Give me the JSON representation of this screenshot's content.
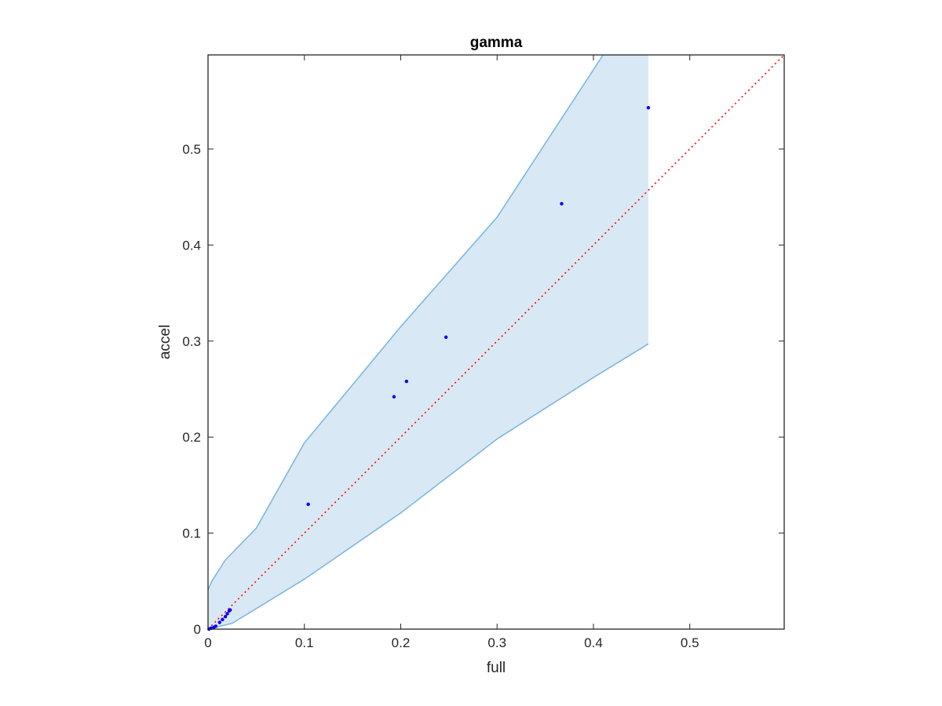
{
  "chart_data": {
    "type": "scatter",
    "title": "gamma",
    "xlabel": "full",
    "ylabel": "accel",
    "xlim": [
      0,
      0.598
    ],
    "ylim": [
      0,
      0.598
    ],
    "xticks": [
      "0",
      "0.1",
      "0.2",
      "0.3",
      "0.4",
      "0.5"
    ],
    "yticks": [
      "0",
      "0.1",
      "0.2",
      "0.3",
      "0.4",
      "0.5"
    ],
    "grid": false,
    "legend": "none",
    "colors": {
      "points": "#0000ff",
      "band_fill": "#d9e8f5",
      "band_edge": "#7fb7dd",
      "reference_line": "#ff0000",
      "axes": "#262626"
    },
    "reference_line": {
      "style": "dotted",
      "from": [
        0,
        0
      ],
      "to": [
        0.598,
        0.598
      ]
    },
    "band": {
      "upper": [
        [
          0,
          0.041
        ],
        [
          0.004,
          0.05
        ],
        [
          0.018,
          0.072
        ],
        [
          0.05,
          0.105
        ],
        [
          0.1,
          0.194
        ],
        [
          0.2,
          0.315
        ],
        [
          0.3,
          0.429
        ],
        [
          0.41,
          0.598
        ],
        [
          0.457,
          0.598
        ]
      ],
      "lower": [
        [
          0,
          0
        ],
        [
          0.025,
          0.006
        ],
        [
          0.1,
          0.052
        ],
        [
          0.2,
          0.121
        ],
        [
          0.3,
          0.198
        ],
        [
          0.4,
          0.262
        ],
        [
          0.457,
          0.297
        ]
      ]
    },
    "points": [
      [
        0.001,
        0.0
      ],
      [
        0.003,
        0.001
      ],
      [
        0.006,
        0.002
      ],
      [
        0.008,
        0.003
      ],
      [
        0.012,
        0.007
      ],
      [
        0.015,
        0.01
      ],
      [
        0.018,
        0.013
      ],
      [
        0.02,
        0.016
      ],
      [
        0.022,
        0.019
      ],
      [
        0.023,
        0.02
      ],
      [
        0.104,
        0.13
      ],
      [
        0.193,
        0.242
      ],
      [
        0.206,
        0.258
      ],
      [
        0.247,
        0.304
      ],
      [
        0.367,
        0.443
      ],
      [
        0.457,
        0.543
      ]
    ]
  }
}
